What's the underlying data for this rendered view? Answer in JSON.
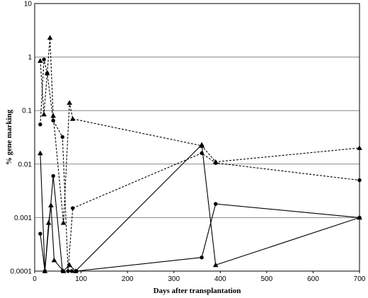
{
  "chart_data": {
    "type": "line",
    "xlabel": "Days after transplantation",
    "ylabel": "% gene marking",
    "xlim": [
      0,
      700
    ],
    "ylim": [
      0.0001,
      10
    ],
    "y_scale": "log",
    "grid": "horizontal",
    "x_ticks": [
      "0",
      "100",
      "200",
      "300",
      "400",
      "500",
      "600",
      "700"
    ],
    "y_ticks": [
      "0.0001",
      "0.001",
      "0.01",
      "0.1",
      "1",
      "10"
    ],
    "series": [
      {
        "line": "dashed",
        "marker": "triangle",
        "points": [
          [
            12,
            0.85
          ],
          [
            20,
            0.085
          ],
          [
            27,
            0.5
          ],
          [
            33,
            2.3
          ],
          [
            40,
            0.08
          ],
          [
            62,
            0.0008
          ],
          [
            75,
            0.14
          ],
          [
            82,
            0.07
          ],
          [
            360,
            0.022
          ],
          [
            390,
            0.011
          ],
          [
            700,
            0.02
          ]
        ]
      },
      {
        "line": "dashed",
        "marker": "circle",
        "points": [
          [
            12,
            0.055
          ],
          [
            20,
            0.9
          ],
          [
            27,
            0.5
          ],
          [
            40,
            0.065
          ],
          [
            60,
            0.032
          ],
          [
            72,
            0.0001
          ],
          [
            82,
            0.0015
          ],
          [
            360,
            0.016
          ],
          [
            390,
            0.0105
          ],
          [
            700,
            0.005
          ]
        ]
      },
      {
        "line": "solid",
        "marker": "triangle",
        "points": [
          [
            12,
            0.016
          ],
          [
            22,
            0.0001
          ],
          [
            30,
            0.0008
          ],
          [
            35,
            0.0017
          ],
          [
            42,
            0.00016
          ],
          [
            62,
            0.0001
          ],
          [
            75,
            0.00013
          ],
          [
            88,
            0.0001
          ],
          [
            360,
            0.023
          ],
          [
            390,
            0.00013
          ],
          [
            700,
            0.001
          ]
        ]
      },
      {
        "line": "solid",
        "marker": "circle",
        "points": [
          [
            12,
            0.0005
          ],
          [
            22,
            0.0001
          ],
          [
            40,
            0.006
          ],
          [
            60,
            0.0001
          ],
          [
            80,
            0.0001
          ],
          [
            90,
            0.0001
          ],
          [
            360,
            0.00018
          ],
          [
            390,
            0.0018
          ],
          [
            700,
            0.001
          ]
        ]
      }
    ]
  }
}
